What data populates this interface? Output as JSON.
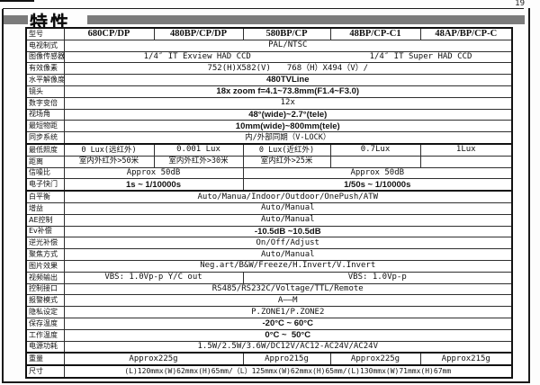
{
  "page": {
    "number": "19"
  },
  "header": {
    "title": "特性",
    "bar_color": "#7b7b7b"
  },
  "table": {
    "rows": [
      {
        "label": "型号",
        "cells": [
          {
            "text": "680CP/DP",
            "span": 1,
            "cls": "model"
          },
          {
            "text": "480BP/CP/DP",
            "span": 1,
            "cls": "model"
          },
          {
            "text": "580BP/CP",
            "span": 1,
            "cls": "model"
          },
          {
            "text": "48BP/CP-C1",
            "span": 1,
            "cls": "model"
          },
          {
            "text": "48AP/BP/CP-C",
            "span": 1,
            "cls": "model"
          }
        ]
      },
      {
        "label": "电视制式",
        "cells": [
          {
            "text": "PAL/NTSC",
            "span": 5
          }
        ]
      },
      {
        "label": "图像传感器",
        "cells": [
          {
            "text": "1/4″ IT Exview HAD CCD",
            "span": 3,
            "cls": "nr"
          },
          {
            "text": "1/4″ IT Super HAD CCD",
            "span": 2,
            "cls": "nl"
          }
        ]
      },
      {
        "label": "有效像素",
        "cells": [
          {
            "text": "752(H)X582(V)　　768（H）X494（V）/",
            "span": 5
          }
        ]
      },
      {
        "label": "水平解像度",
        "cells": [
          {
            "text": "480TVLine",
            "span": 5,
            "cls": "sans"
          }
        ]
      },
      {
        "label": "镜头",
        "cells": [
          {
            "text": "18x zoom f=4.1~73.8mm(F1.4~F3.0)",
            "span": 5,
            "cls": "sans"
          }
        ]
      },
      {
        "label": "数字变倍",
        "cells": [
          {
            "text": "12x",
            "span": 5
          }
        ]
      },
      {
        "label": "视场角",
        "cells": [
          {
            "text": "48°(wide)~2.7°(tele)",
            "span": 5,
            "cls": "sans"
          }
        ]
      },
      {
        "label": "最短物距",
        "cells": [
          {
            "text": "10mm(wide)~800mm(tele)",
            "span": 5,
            "cls": "sans"
          }
        ]
      },
      {
        "label": "同步系统",
        "cells": [
          {
            "text": "内/外部同期（V-LOCK）",
            "span": 5,
            "cls": "cjk"
          }
        ]
      },
      {
        "label": "最低照度",
        "thick_top": true,
        "cells": [
          {
            "text": "0 Lux(远红外)",
            "span": 1,
            "cls": "cjk"
          },
          {
            "text": "0.001 Lux",
            "span": 1
          },
          {
            "text": "0 Lux(近红外)",
            "span": 1,
            "cls": "cjk"
          },
          {
            "text": "0.7Lux",
            "span": 1
          },
          {
            "text": "1Lux",
            "span": 1
          }
        ]
      },
      {
        "label": "距离",
        "cells": [
          {
            "text": "室内外红外>50米",
            "span": 1,
            "cls": "cjk"
          },
          {
            "text": "室内外红外>30米",
            "span": 1,
            "cls": "cjk"
          },
          {
            "text": "室内红外>25米",
            "span": 1,
            "cls": "cjk"
          },
          {
            "text": "",
            "span": 1
          },
          {
            "text": "",
            "span": 1
          }
        ]
      },
      {
        "label": "信噪比",
        "cells": [
          {
            "text": "Approx 50dB",
            "span": 2
          },
          {
            "text": "Approx 50dB",
            "span": 3
          }
        ]
      },
      {
        "label": "电子快门",
        "cells": [
          {
            "text": "1s ~ 1/10000s",
            "span": 2,
            "cls": "sans"
          },
          {
            "text": "1/50s ~ 1/10000s",
            "span": 3,
            "cls": "sans"
          }
        ]
      },
      {
        "label": "白平衡",
        "thick_top": true,
        "cells": [
          {
            "text": "Auto/Manua/Indoor/Outdoor/OnePush/ATW",
            "span": 5
          }
        ]
      },
      {
        "label": "增益",
        "cells": [
          {
            "text": "Auto/Manual",
            "span": 5
          }
        ]
      },
      {
        "label": "AE控制",
        "cells": [
          {
            "text": "Auto/Manual",
            "span": 5
          }
        ]
      },
      {
        "label": "Ev补偿",
        "cells": [
          {
            "text": "-10.5dB ~10.5dB",
            "span": 5,
            "cls": "sans"
          }
        ]
      },
      {
        "label": "逆光补偿",
        "cells": [
          {
            "text": "On/Off/Adjust",
            "span": 5
          }
        ]
      },
      {
        "label": "聚焦方式",
        "cells": [
          {
            "text": "Auto/Manual",
            "span": 5
          }
        ]
      },
      {
        "label": "图片效果",
        "cells": [
          {
            "text": "Neg.art/B&W/Freeze/H.Invert/V.Invert",
            "span": 5
          }
        ]
      },
      {
        "label": "视频输出",
        "cells": [
          {
            "text": "VBS: 1.0Vp-p Y/C out",
            "span": 2
          },
          {
            "text": "VBS: 1.0Vp-p",
            "span": 3
          }
        ]
      },
      {
        "label": "控制接口",
        "cells": [
          {
            "text": "RS485/RS232C/Voltage/TTL/Remote",
            "span": 5
          }
        ]
      },
      {
        "label": "报警模式",
        "cells": [
          {
            "text": "A——M",
            "span": 5
          }
        ]
      },
      {
        "label": "隐私设定",
        "cells": [
          {
            "text": "P.ZONE1/P.ZONE2",
            "span": 5
          }
        ]
      },
      {
        "label": "保存温度",
        "cells": [
          {
            "text": "-20°C ~ 60°C",
            "span": 5,
            "cls": "sans"
          }
        ]
      },
      {
        "label": "工作温度",
        "cells": [
          {
            "text": "0°C ~  50°C",
            "span": 5,
            "cls": "sans"
          }
        ]
      },
      {
        "label": "电源功耗",
        "cells": [
          {
            "text": "1.5W/2.5W/3.6W/DC12V/AC12-AC24V/AC24V",
            "span": 5
          }
        ]
      },
      {
        "label": "重量",
        "thick_top": true,
        "thick_bottom": true,
        "cells": [
          {
            "text": "Approx225g",
            "span": 2
          },
          {
            "text": "Appro215g",
            "span": 1
          },
          {
            "text": "Approx225g",
            "span": 1
          },
          {
            "text": "Approx215g",
            "span": 1
          }
        ]
      },
      {
        "label": "尺寸",
        "cells": [
          {
            "text": "(L)120mmx(W)62mmx(H)65mm/（L）125mmx(W)62mmx(H)65mm/(L)130mmx(W)71mmx(H)67mm",
            "span": 5,
            "cls": "small"
          }
        ]
      }
    ]
  }
}
